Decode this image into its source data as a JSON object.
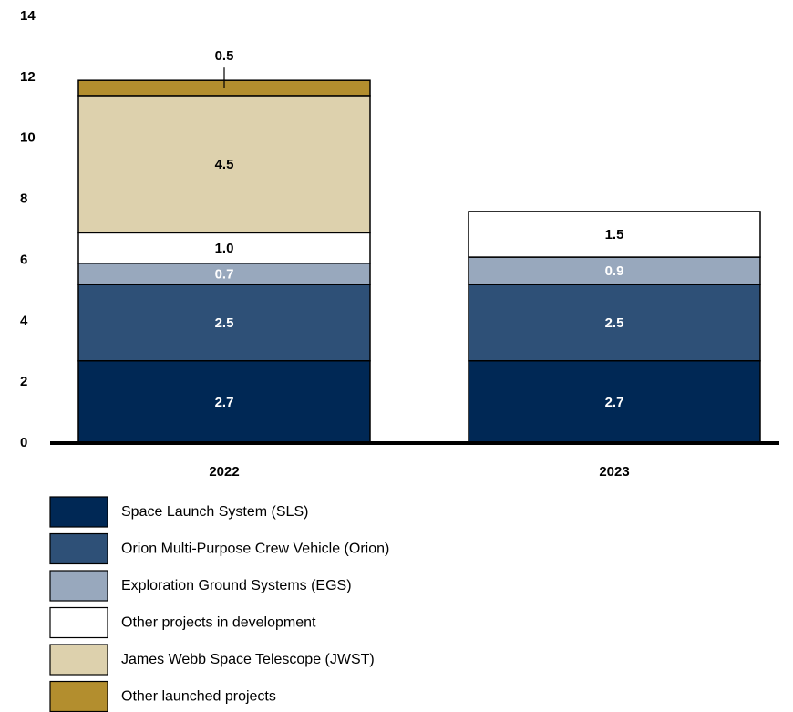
{
  "chart_data": {
    "type": "stacked_bar",
    "categories": [
      "2022",
      "2023"
    ],
    "series": [
      {
        "name": "Space Launch System (SLS)",
        "color": "#002855",
        "label_color": "#ffffff",
        "values": [
          2.7,
          2.7
        ]
      },
      {
        "name": "Orion Multi-Purpose Crew Vehicle (Orion)",
        "color": "#2e5077",
        "label_color": "#ffffff",
        "values": [
          2.5,
          2.5
        ]
      },
      {
        "name": "Exploration Ground Systems (EGS)",
        "color": "#98a8bd",
        "label_color": "#ffffff",
        "values": [
          0.7,
          0.9
        ]
      },
      {
        "name": "Other projects in development",
        "color": "#ffffff",
        "label_color": "#000000",
        "values": [
          1.0,
          1.5
        ],
        "value_labels": [
          "1.0",
          "1.5"
        ]
      },
      {
        "name": "James Webb Space Telescope (JWST)",
        "color": "#ddd1ad",
        "label_color": "#000000",
        "values": [
          4.5,
          null
        ]
      },
      {
        "name": "Other launched projects",
        "color": "#b38e2e",
        "label_color": "#000000",
        "values": [
          0.5,
          null
        ]
      }
    ],
    "ylim": [
      0,
      14
    ],
    "yticks": [
      0,
      2,
      4,
      6,
      8,
      10,
      12,
      14
    ],
    "grid": false,
    "legend": "bottom"
  }
}
